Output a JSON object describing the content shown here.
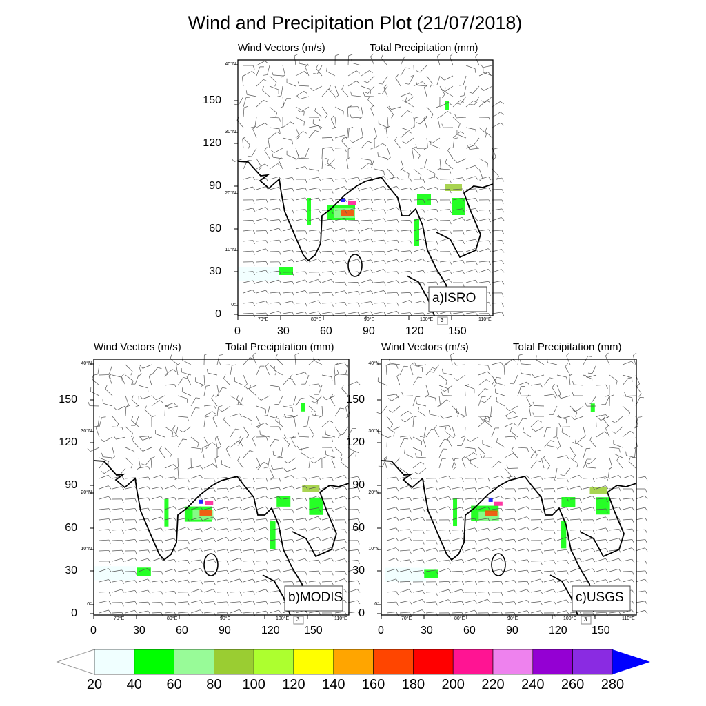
{
  "title": "Wind and Precipitation Plot (21/07/2018)",
  "panel_common": {
    "left_label": "Wind Vectors (m/s)",
    "right_label": "Total Precipitation (mm)",
    "y_numeric": [
      "0",
      "30",
      "60",
      "90",
      "120",
      "150"
    ],
    "x_numeric": [
      "0",
      "30",
      "60",
      "90",
      "120",
      "150"
    ],
    "lat_ticks": [
      "40°N",
      "30°N",
      "20°N",
      "10°N",
      "0°"
    ],
    "lon_ticks": [
      "70°E",
      "80°E",
      "90°E",
      "100°E",
      "110°E"
    ],
    "ref_vector": "3"
  },
  "panels": [
    {
      "tag": "a)ISRO"
    },
    {
      "tag": "b)MODIS"
    },
    {
      "tag": "c)USGS"
    }
  ],
  "colorbar": {
    "labels": [
      "20",
      "40",
      "60",
      "80",
      "100",
      "120",
      "140",
      "160",
      "180",
      "200",
      "220",
      "240",
      "260",
      "280"
    ],
    "colors": [
      "#f0ffff",
      "#00ff00",
      "#98fb98",
      "#9acd32",
      "#adff2f",
      "#ffff00",
      "#ffa500",
      "#ff4500",
      "#ff0000",
      "#ff1493",
      "#ee82ee",
      "#9400d3",
      "#8a2be2"
    ],
    "over_color": "#0000ff",
    "under_color": "#ffffff"
  }
}
